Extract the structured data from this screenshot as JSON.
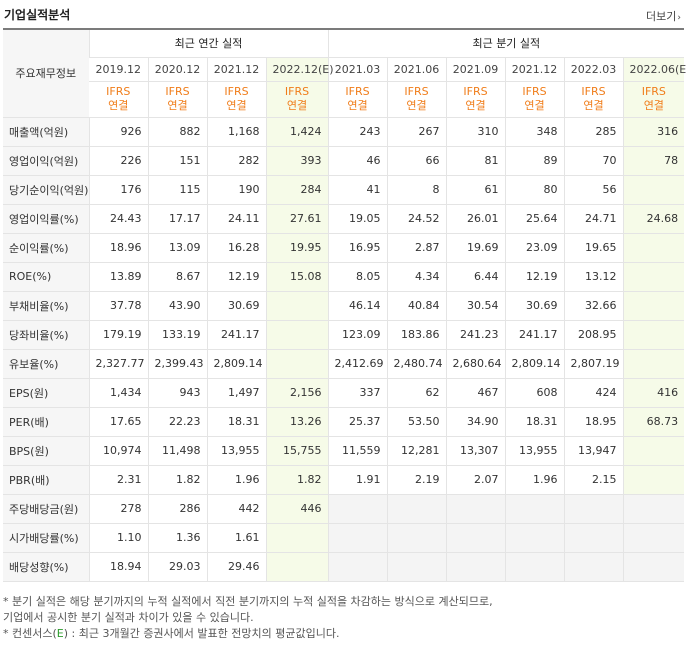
{
  "header": {
    "title": "기업실적분석",
    "more_label": "더보기",
    "more_arrow": "›"
  },
  "table": {
    "row_header_label": "주요재무정보",
    "group_annual": "최근 연간 실적",
    "group_quarter": "최근 분기 실적",
    "annual_periods": [
      "2019.12",
      "2020.12",
      "2021.12",
      "2022.12(E)"
    ],
    "quarter_periods": [
      "2021.03",
      "2021.06",
      "2021.09",
      "2021.12",
      "2022.03",
      "2022.06(E)"
    ],
    "ifrs_line1": "IFRS",
    "ifrs_line2": "연결",
    "rows": [
      {
        "label": "매출액(억원)",
        "annual": [
          "926",
          "882",
          "1,168",
          "1,424"
        ],
        "quarter": [
          "243",
          "267",
          "310",
          "348",
          "285",
          "316"
        ]
      },
      {
        "label": "영업이익(억원)",
        "annual": [
          "226",
          "151",
          "282",
          "393"
        ],
        "quarter": [
          "46",
          "66",
          "81",
          "89",
          "70",
          "78"
        ]
      },
      {
        "label": "당기순이익(억원)",
        "annual": [
          "176",
          "115",
          "190",
          "284"
        ],
        "quarter": [
          "41",
          "8",
          "61",
          "80",
          "56",
          ""
        ]
      },
      {
        "label": "영업이익률(%)",
        "annual": [
          "24.43",
          "17.17",
          "24.11",
          "27.61"
        ],
        "quarter": [
          "19.05",
          "24.52",
          "26.01",
          "25.64",
          "24.71",
          "24.68"
        ]
      },
      {
        "label": "순이익률(%)",
        "annual": [
          "18.96",
          "13.09",
          "16.28",
          "19.95"
        ],
        "quarter": [
          "16.95",
          "2.87",
          "19.69",
          "23.09",
          "19.65",
          ""
        ]
      },
      {
        "label": "ROE(%)",
        "annual": [
          "13.89",
          "8.67",
          "12.19",
          "15.08"
        ],
        "quarter": [
          "8.05",
          "4.34",
          "6.44",
          "12.19",
          "13.12",
          ""
        ]
      },
      {
        "label": "부채비율(%)",
        "annual": [
          "37.78",
          "43.90",
          "30.69",
          ""
        ],
        "quarter": [
          "46.14",
          "40.84",
          "30.54",
          "30.69",
          "32.66",
          ""
        ]
      },
      {
        "label": "당좌비율(%)",
        "annual": [
          "179.19",
          "133.19",
          "241.17",
          ""
        ],
        "quarter": [
          "123.09",
          "183.86",
          "241.23",
          "241.17",
          "208.95",
          ""
        ]
      },
      {
        "label": "유보율(%)",
        "annual": [
          "2,327.77",
          "2,399.43",
          "2,809.14",
          ""
        ],
        "quarter": [
          "2,412.69",
          "2,480.74",
          "2,680.64",
          "2,809.14",
          "2,807.19",
          ""
        ]
      },
      {
        "label": "EPS(원)",
        "annual": [
          "1,434",
          "943",
          "1,497",
          "2,156"
        ],
        "quarter": [
          "337",
          "62",
          "467",
          "608",
          "424",
          "416"
        ]
      },
      {
        "label": "PER(배)",
        "annual": [
          "17.65",
          "22.23",
          "18.31",
          "13.26"
        ],
        "quarter": [
          "25.37",
          "53.50",
          "34.90",
          "18.31",
          "18.95",
          "68.73"
        ]
      },
      {
        "label": "BPS(원)",
        "annual": [
          "10,974",
          "11,498",
          "13,955",
          "15,755"
        ],
        "quarter": [
          "11,559",
          "12,281",
          "13,307",
          "13,955",
          "13,947",
          ""
        ]
      },
      {
        "label": "PBR(배)",
        "annual": [
          "2.31",
          "1.82",
          "1.96",
          "1.82"
        ],
        "quarter": [
          "1.91",
          "2.19",
          "2.07",
          "1.96",
          "2.15",
          ""
        ]
      },
      {
        "label": "주당배당금(원)",
        "annual": [
          "278",
          "286",
          "442",
          "446"
        ],
        "quarter": [
          "",
          "",
          "",
          "",
          "",
          ""
        ]
      },
      {
        "label": "시가배당률(%)",
        "annual": [
          "1.10",
          "1.36",
          "1.61",
          ""
        ],
        "quarter": [
          "",
          "",
          "",
          "",
          "",
          ""
        ]
      },
      {
        "label": "배당성향(%)",
        "annual": [
          "18.94",
          "29.03",
          "29.46",
          ""
        ],
        "quarter": [
          "",
          "",
          "",
          "",
          "",
          ""
        ]
      }
    ]
  },
  "notes": {
    "line1": "* 분기 실적은 해당 분기까지의 누적 실적에서 직전 분기까지의 누적 실적을 차감하는 방식으로 계산되므로,",
    "line2": "  기업에서 공시한 분기 실적과 차이가 있을 수 있습니다.",
    "line3_prefix": "* 컨센서스(",
    "line3_e": "E",
    "line3_suffix": ") : 최근 3개월간 증권사에서 발표한 전망치의 평균값입니다."
  }
}
